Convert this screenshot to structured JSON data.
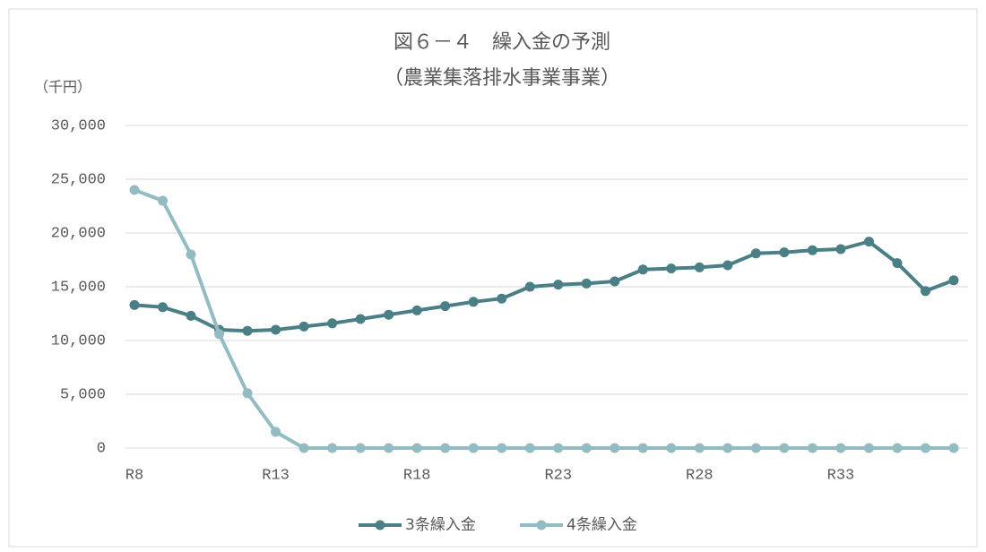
{
  "chart_data": {
    "type": "line",
    "title": "図６－４　繰入金の予測",
    "subtitle": "（農業集落排水事業事業）",
    "y_label": "（千円）",
    "categories": [
      "R8",
      null,
      null,
      null,
      null,
      "R13",
      null,
      null,
      null,
      null,
      "R18",
      null,
      null,
      null,
      null,
      "R23",
      null,
      null,
      null,
      null,
      "R28",
      null,
      null,
      null,
      null,
      "R33",
      null,
      null,
      null,
      null
    ],
    "series": [
      {
        "name": "3条繰入金",
        "color": "#4a7f86",
        "values": [
          13300,
          13100,
          12300,
          11000,
          10900,
          11000,
          11300,
          11600,
          12000,
          12400,
          12800,
          13200,
          13600,
          13900,
          15000,
          15200,
          15300,
          15500,
          16600,
          16700,
          16800,
          17000,
          18100,
          18200,
          18400,
          18500,
          19200,
          17200,
          14600,
          15600
        ]
      },
      {
        "name": "4条繰入金",
        "color": "#93bcc2",
        "values": [
          24000,
          23000,
          18000,
          10600,
          5100,
          1500,
          0,
          0,
          0,
          0,
          0,
          0,
          0,
          0,
          0,
          0,
          0,
          0,
          0,
          0,
          0,
          0,
          0,
          0,
          0,
          0,
          0,
          0,
          0,
          0
        ]
      }
    ],
    "ylim": [
      0,
      30000
    ],
    "yticks": [
      0,
      {
        "value": 5000,
        "label": "5,000"
      },
      {
        "value": 10000,
        "label": "10,000"
      },
      {
        "value": 15000,
        "label": "15,000"
      },
      {
        "value": 20000,
        "label": "20,000"
      },
      {
        "value": 25000,
        "label": "25,000"
      },
      {
        "value": 30000,
        "label": "30,000"
      }
    ],
    "grid": true,
    "legend": "bottom"
  }
}
